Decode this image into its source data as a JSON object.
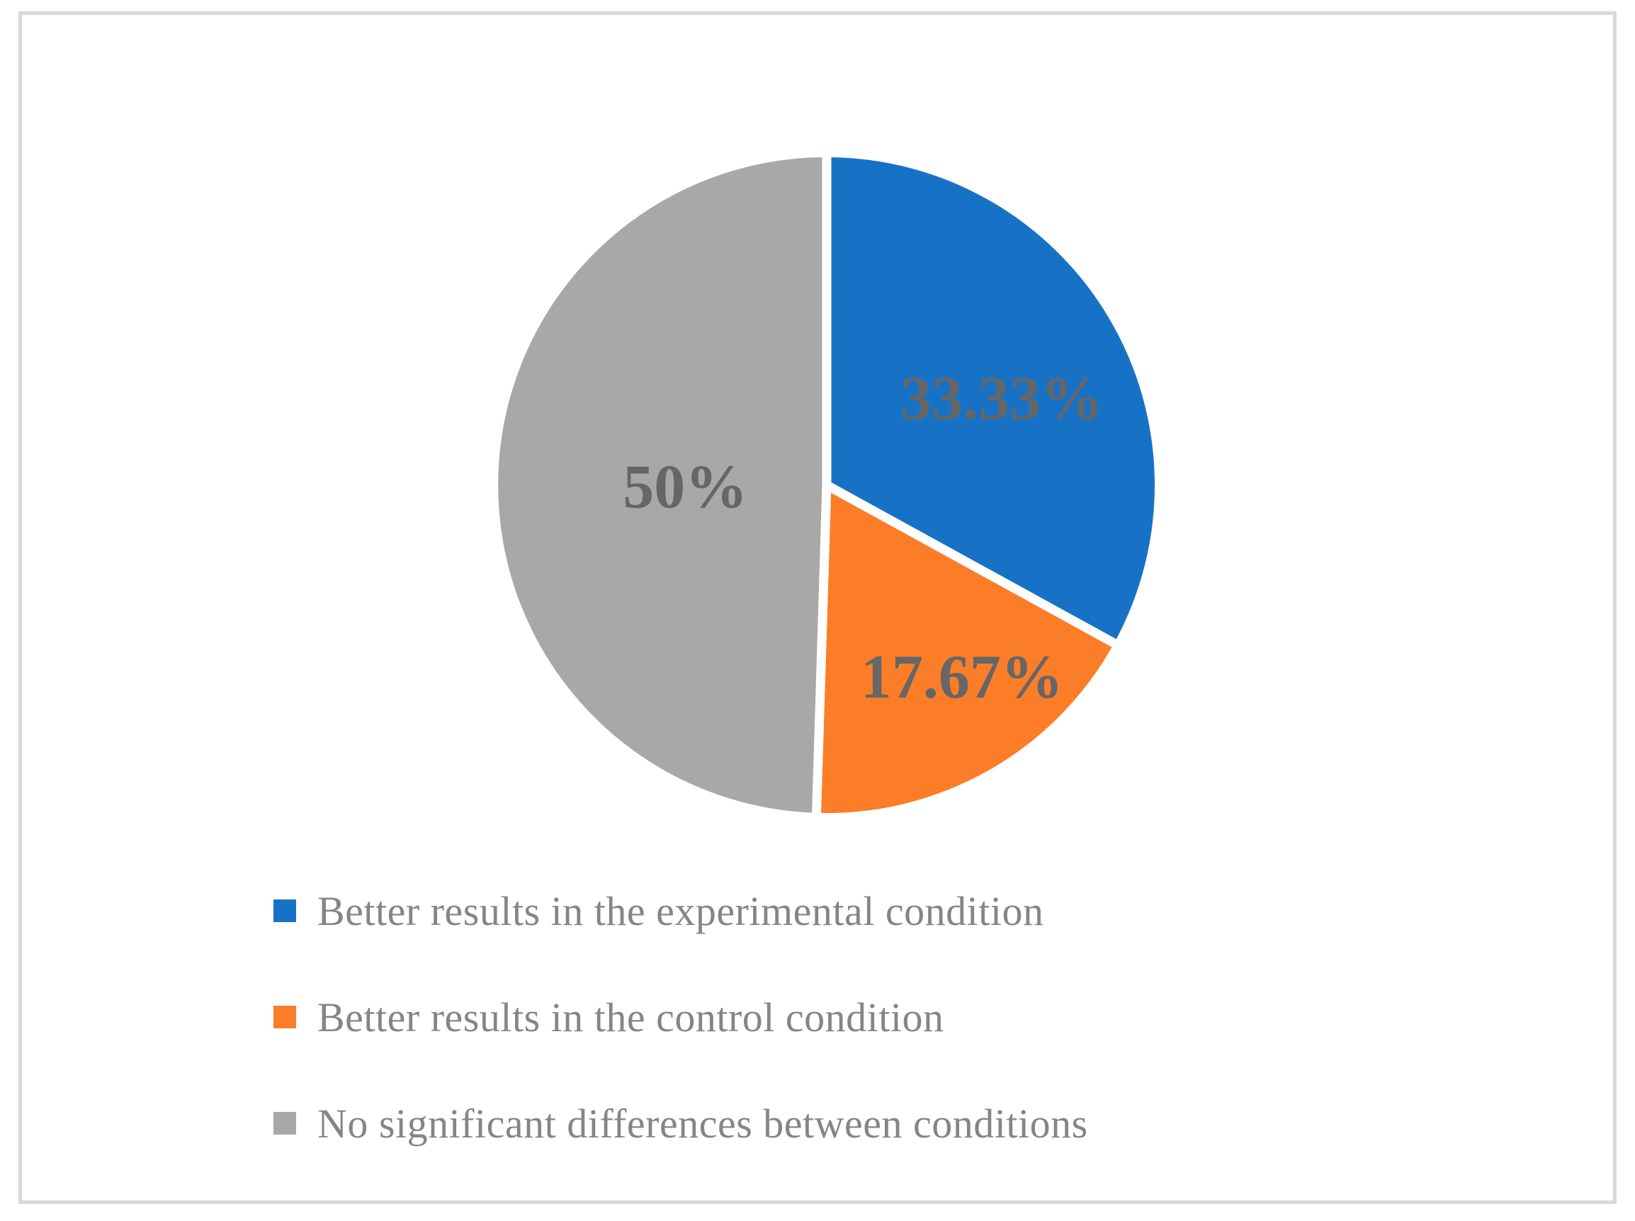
{
  "chart_data": {
    "type": "pie",
    "title": "",
    "slices": [
      {
        "label": "Better results in the experimental condition",
        "value": 33.33,
        "data_label": "33.33%",
        "color": "#1772C6"
      },
      {
        "label": "Better results in the control condition",
        "value": 17.67,
        "data_label": "17.67%",
        "color": "#FC7D28"
      },
      {
        "label": "No significant differences between conditions",
        "value": 50,
        "data_label": "50%",
        "color": "#A8A8A8"
      }
    ],
    "start_angle_deg": 0,
    "direction": "clockwise",
    "slice_separator_color": "#FFFFFF",
    "data_label_color": "#666666",
    "legend_text_color": "#858585",
    "frame_border_color": "#D9D9D9",
    "legend_position": "bottom-left",
    "grid": false
  }
}
